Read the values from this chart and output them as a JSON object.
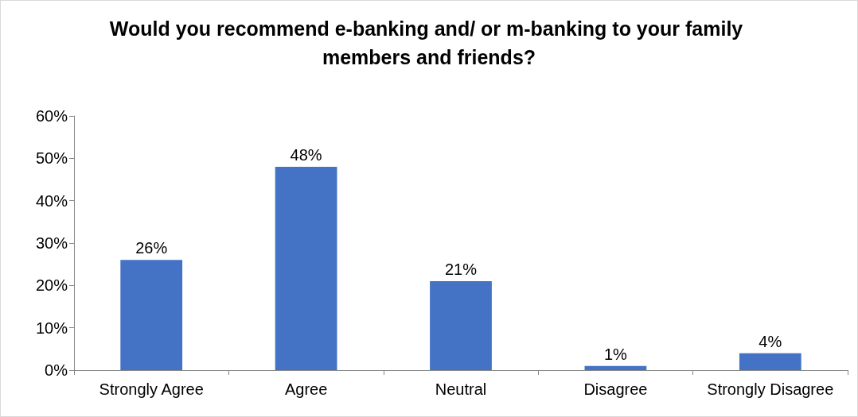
{
  "chart_data": {
    "type": "bar",
    "title": "Would you recommend e-banking and/ or m-banking to your family members and friends?",
    "categories": [
      "Strongly Agree",
      "Agree",
      "Neutral",
      "Disagree",
      "Strongly Disagree"
    ],
    "values": [
      26,
      48,
      21,
      1,
      4
    ],
    "value_labels": [
      "26%",
      "48%",
      "21%",
      "1%",
      "4%"
    ],
    "color": "#4472c4",
    "ylim": [
      0,
      60
    ],
    "yticks": [
      {
        "value": 0,
        "label": "0%"
      },
      {
        "value": 10,
        "label": "10%"
      },
      {
        "value": 20,
        "label": "20%"
      },
      {
        "value": 30,
        "label": "30%"
      },
      {
        "value": 40,
        "label": "40%"
      },
      {
        "value": 50,
        "label": "50%"
      },
      {
        "value": 60,
        "label": "60%"
      }
    ],
    "grid": false
  }
}
